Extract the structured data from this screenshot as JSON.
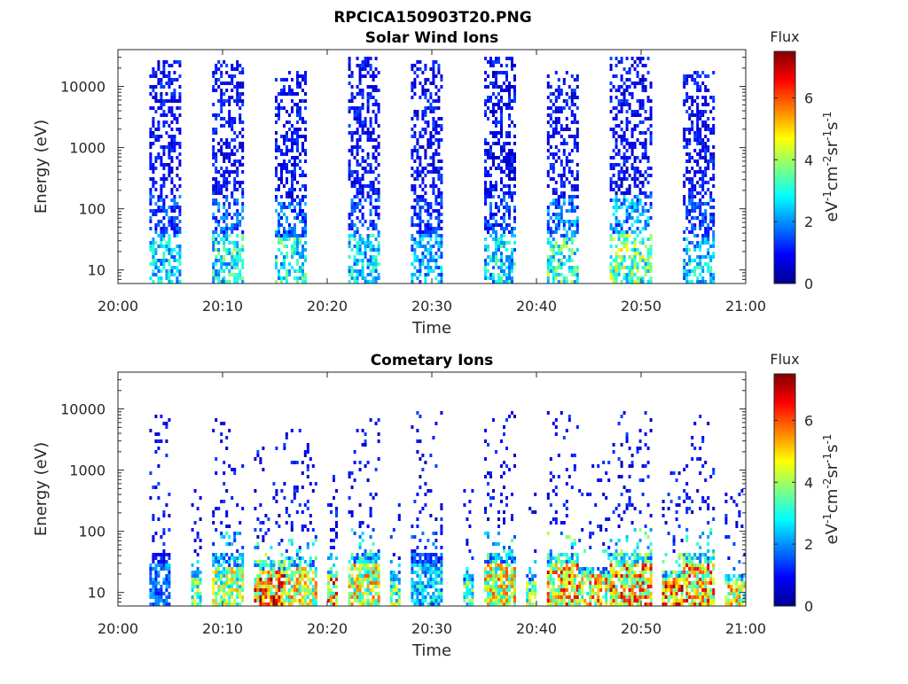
{
  "figure_title": "RPCICA150903T20.PNG",
  "colors": {
    "colormap": [
      "#00008f",
      "#0000ff",
      "#0080ff",
      "#00ffff",
      "#80ff80",
      "#ffff00",
      "#ff8000",
      "#ff0000",
      "#800000"
    ]
  },
  "chart_data": [
    {
      "type": "heatmap",
      "title": "Solar Wind Ions",
      "xlabel": "Time",
      "ylabel": "Energy (eV)",
      "xlim": [
        "20:00",
        "21:00"
      ],
      "x_ticks": [
        "20:00",
        "20:10",
        "20:20",
        "20:30",
        "20:40",
        "20:50",
        "21:00"
      ],
      "ylim": [
        6,
        40000
      ],
      "yscale": "log",
      "y_ticks": [
        "10",
        "100",
        "1000",
        "10000"
      ],
      "grid": false,
      "colorbar": {
        "title": "Flux",
        "label": "eV-1cm-2sr-1s-1",
        "label_parts": [
          "eV",
          "-1",
          "cm",
          "-2",
          "sr",
          "-1",
          "s",
          "-1"
        ],
        "range": [
          0,
          7.5
        ],
        "ticks": [
          "0",
          "2",
          "4",
          "6"
        ]
      },
      "bursts": [
        {
          "start": "20:03",
          "end": "20:06",
          "max_energy": 30000,
          "peak_flux": 3.5
        },
        {
          "start": "20:09",
          "end": "20:12",
          "max_energy": 30000,
          "peak_flux": 4.0
        },
        {
          "start": "20:15",
          "end": "20:18",
          "max_energy": 20000,
          "peak_flux": 4.0
        },
        {
          "start": "20:22",
          "end": "20:25",
          "max_energy": 35000,
          "peak_flux": 3.5
        },
        {
          "start": "20:28",
          "end": "20:31",
          "max_energy": 30000,
          "peak_flux": 3.0
        },
        {
          "start": "20:35",
          "end": "20:38",
          "max_energy": 35000,
          "peak_flux": 3.5
        },
        {
          "start": "20:41",
          "end": "20:44",
          "max_energy": 20000,
          "peak_flux": 4.5
        },
        {
          "start": "20:47",
          "end": "20:51",
          "max_energy": 35000,
          "peak_flux": 5.0
        },
        {
          "start": "20:54",
          "end": "20:57",
          "max_energy": 20000,
          "peak_flux": 3.5
        }
      ]
    },
    {
      "type": "heatmap",
      "title": "Cometary Ions",
      "xlabel": "Time",
      "ylabel": "Energy (eV)",
      "xlim": [
        "20:00",
        "21:00"
      ],
      "x_ticks": [
        "20:00",
        "20:10",
        "20:20",
        "20:30",
        "20:40",
        "20:50",
        "21:00"
      ],
      "ylim": [
        6,
        40000
      ],
      "yscale": "log",
      "y_ticks": [
        "10",
        "100",
        "1000",
        "10000"
      ],
      "grid": false,
      "colorbar": {
        "title": "Flux",
        "label": "eV-1cm-2sr-1s-1",
        "label_parts": [
          "eV",
          "-1",
          "cm",
          "-2",
          "sr",
          "-1",
          "s",
          "-1"
        ],
        "range": [
          0,
          7.5
        ],
        "ticks": [
          "0",
          "2",
          "4",
          "6"
        ]
      },
      "bursts": [
        {
          "start": "20:03",
          "end": "20:05",
          "max_energy": 10000,
          "peak_flux": 2.5
        },
        {
          "start": "20:07",
          "end": "20:08",
          "max_energy": 800,
          "peak_flux": 5.0
        },
        {
          "start": "20:09",
          "end": "20:12",
          "max_energy": 8000,
          "peak_flux": 5.5
        },
        {
          "start": "20:13",
          "end": "20:16",
          "max_energy": 3000,
          "peak_flux": 7.5
        },
        {
          "start": "20:16",
          "end": "20:19",
          "max_energy": 5000,
          "peak_flux": 6.0
        },
        {
          "start": "20:20",
          "end": "20:21",
          "max_energy": 1500,
          "peak_flux": 7.0
        },
        {
          "start": "20:22",
          "end": "20:25",
          "max_energy": 10000,
          "peak_flux": 6.0
        },
        {
          "start": "20:26",
          "end": "20:27",
          "max_energy": 600,
          "peak_flux": 5.0
        },
        {
          "start": "20:28",
          "end": "20:31",
          "max_energy": 10000,
          "peak_flux": 3.5
        },
        {
          "start": "20:33",
          "end": "20:34",
          "max_energy": 600,
          "peak_flux": 5.0
        },
        {
          "start": "20:35",
          "end": "20:38",
          "max_energy": 10000,
          "peak_flux": 6.0
        },
        {
          "start": "20:39",
          "end": "20:40",
          "max_energy": 500,
          "peak_flux": 5.0
        },
        {
          "start": "20:41",
          "end": "20:44",
          "max_energy": 10000,
          "peak_flux": 7.0
        },
        {
          "start": "20:44",
          "end": "20:47",
          "max_energy": 1500,
          "peak_flux": 6.5
        },
        {
          "start": "20:47",
          "end": "20:51",
          "max_energy": 10000,
          "peak_flux": 7.0
        },
        {
          "start": "20:52",
          "end": "20:54",
          "max_energy": 1000,
          "peak_flux": 7.5
        },
        {
          "start": "20:54",
          "end": "20:57",
          "max_energy": 10000,
          "peak_flux": 7.0
        },
        {
          "start": "20:58",
          "end": "21:00",
          "max_energy": 600,
          "peak_flux": 6.0
        }
      ]
    }
  ]
}
